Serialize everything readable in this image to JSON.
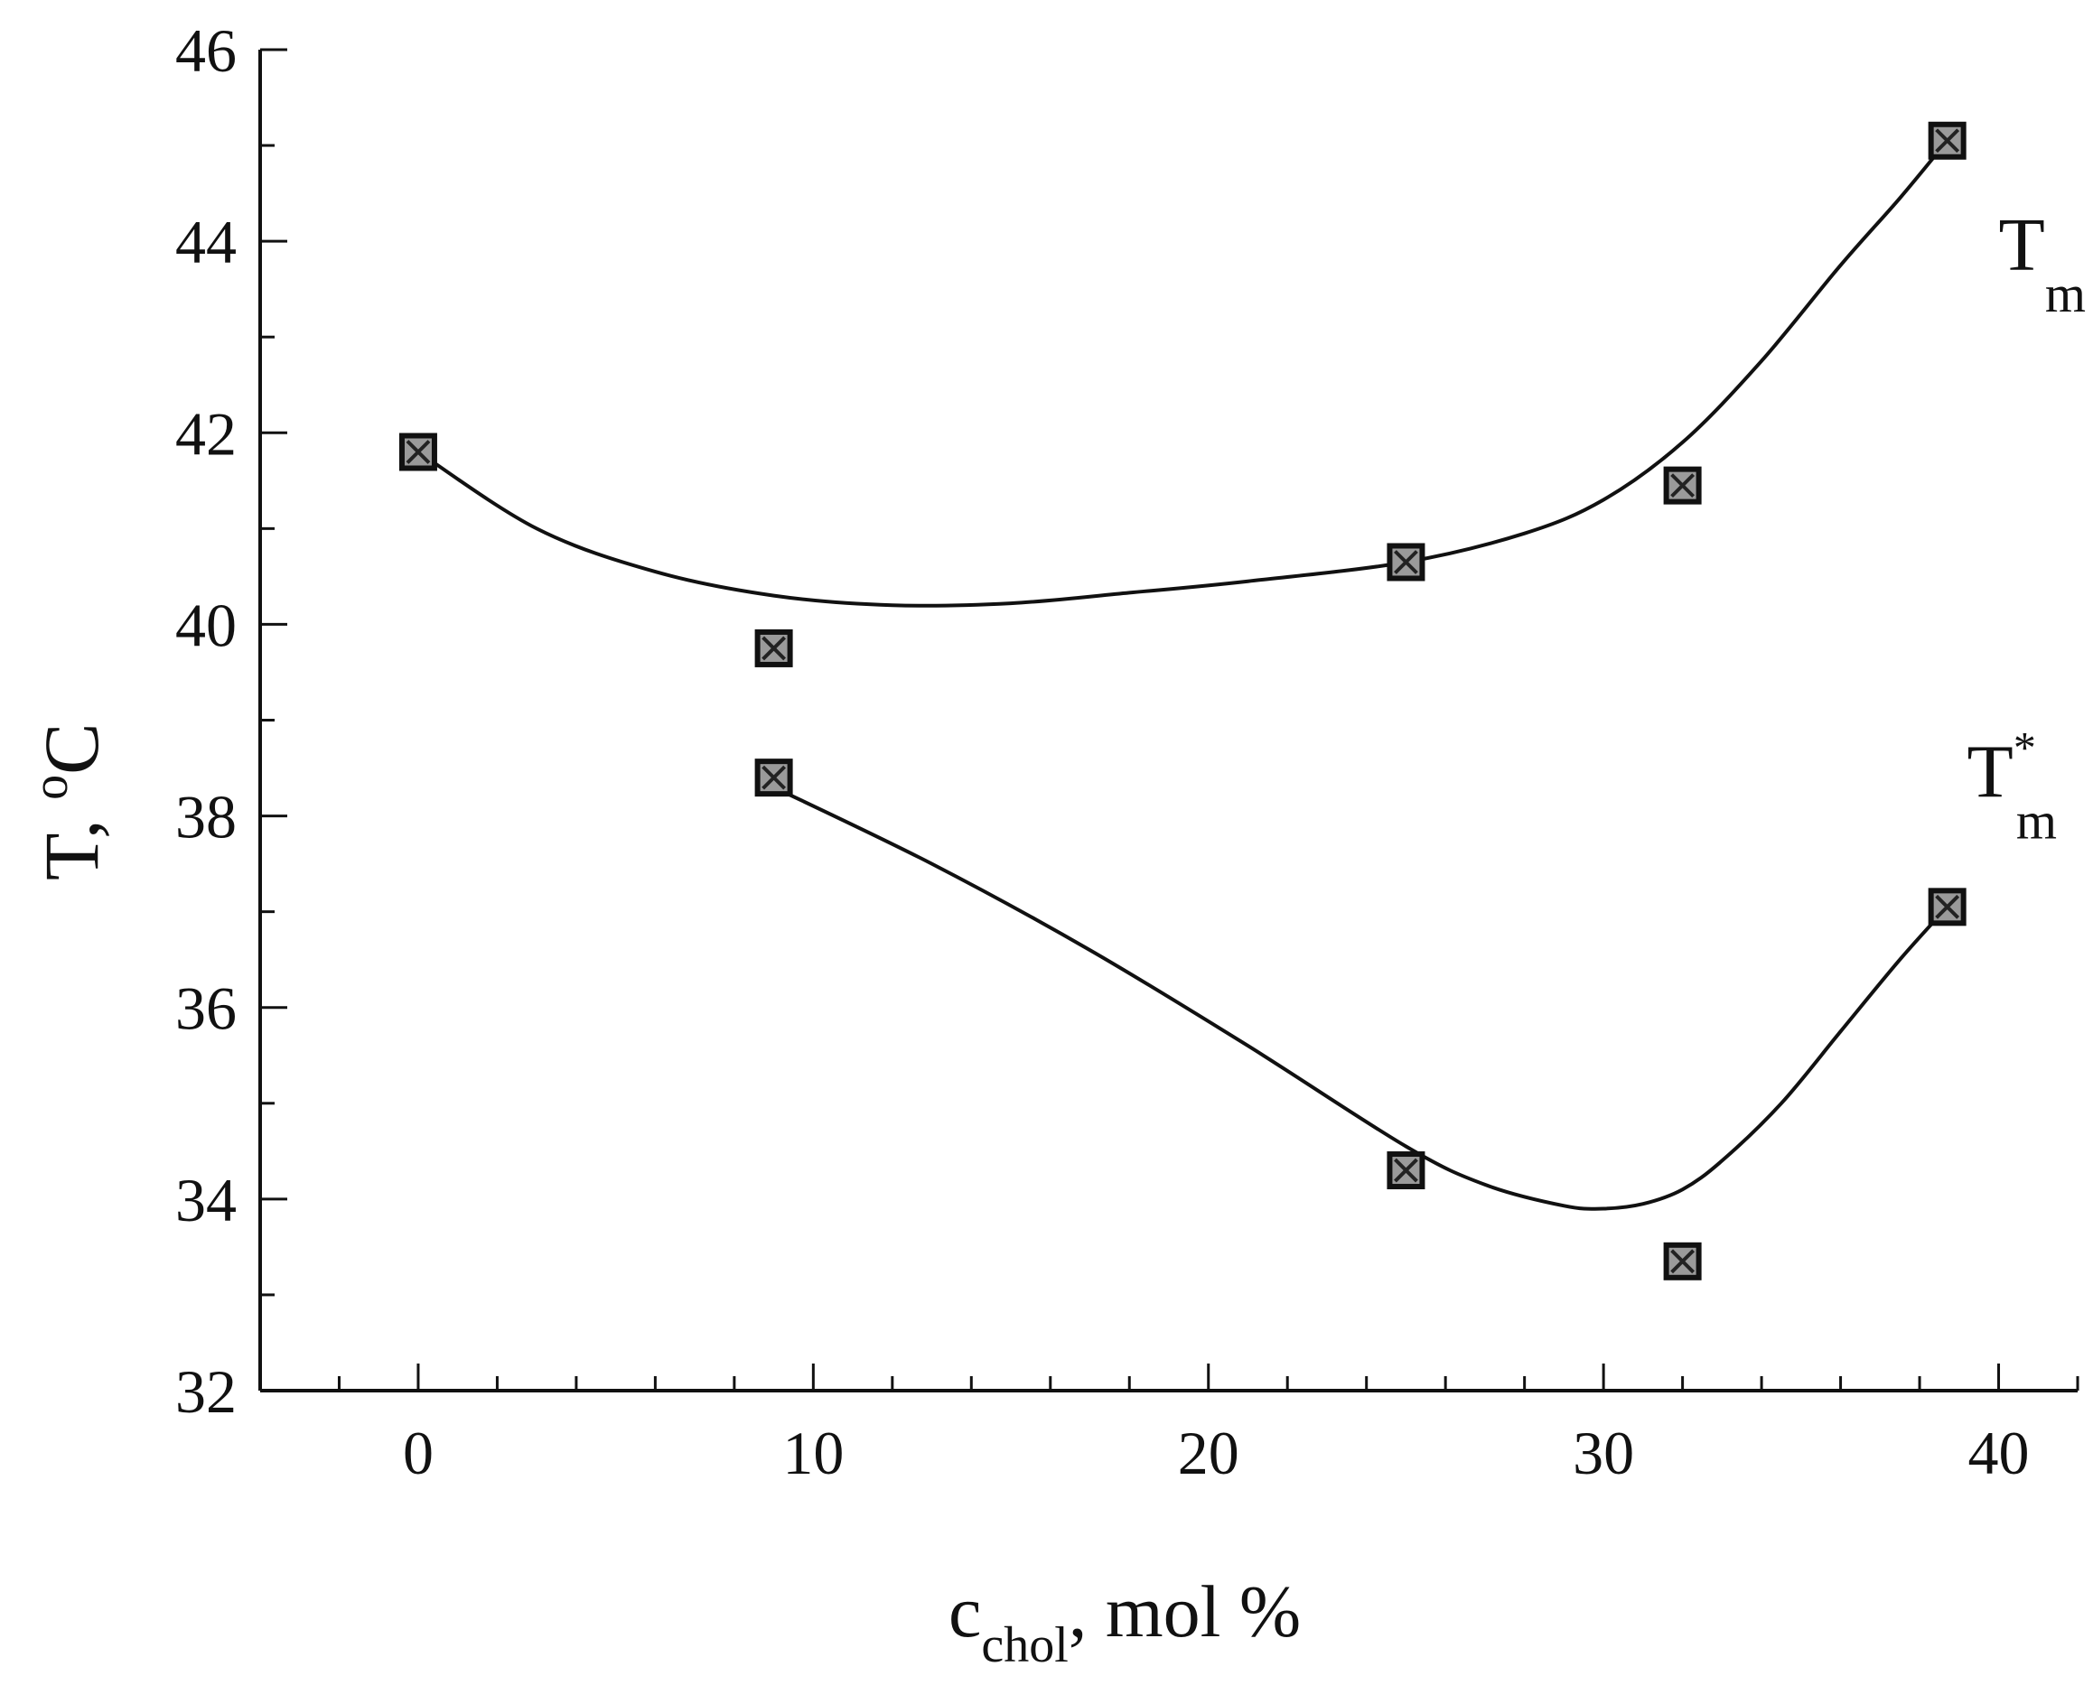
{
  "chart_data": {
    "type": "scatter",
    "title": "",
    "xlabel": {
      "main": "c",
      "sub": "chol",
      "rest": ", mol %"
    },
    "ylabel": {
      "main": "T, ",
      "sup": "o",
      "rest": "C"
    },
    "xlim": [
      -4,
      42
    ],
    "ylim": [
      32,
      46
    ],
    "x_ticks": [
      0,
      10,
      20,
      30,
      40
    ],
    "y_ticks": [
      32,
      34,
      36,
      38,
      40,
      42,
      44,
      46
    ],
    "grid": false,
    "legend": "none",
    "series": [
      {
        "label": {
          "main": "T",
          "sub": "m",
          "sup": ""
        },
        "label_position": {
          "x": 40,
          "y": 43.7
        },
        "points": [
          {
            "x": 0,
            "y": 41.8
          },
          {
            "x": 9,
            "y": 39.75
          },
          {
            "x": 25,
            "y": 40.65
          },
          {
            "x": 32,
            "y": 41.45
          },
          {
            "x": 38.7,
            "y": 45.05
          }
        ],
        "fit_curve": [
          {
            "x": 0,
            "y": 41.8
          },
          {
            "x": 3,
            "y": 41.0
          },
          {
            "x": 6,
            "y": 40.55
          },
          {
            "x": 9,
            "y": 40.3
          },
          {
            "x": 12,
            "y": 40.2
          },
          {
            "x": 15,
            "y": 40.22
          },
          {
            "x": 18,
            "y": 40.33
          },
          {
            "x": 21,
            "y": 40.45
          },
          {
            "x": 25,
            "y": 40.65
          },
          {
            "x": 28,
            "y": 40.95
          },
          {
            "x": 30,
            "y": 41.3
          },
          {
            "x": 32,
            "y": 41.9
          },
          {
            "x": 34,
            "y": 42.75
          },
          {
            "x": 36,
            "y": 43.75
          },
          {
            "x": 37.5,
            "y": 44.45
          },
          {
            "x": 38.7,
            "y": 45.05
          }
        ]
      },
      {
        "label": {
          "main": "T",
          "sub": "m",
          "sup": "*"
        },
        "label_position": {
          "x": 39.2,
          "y": 38.2
        },
        "points": [
          {
            "x": 9,
            "y": 38.4
          },
          {
            "x": 25,
            "y": 34.3
          },
          {
            "x": 32,
            "y": 33.35
          },
          {
            "x": 38.7,
            "y": 37.05
          }
        ],
        "fit_curve": [
          {
            "x": 9,
            "y": 38.3
          },
          {
            "x": 13,
            "y": 37.5
          },
          {
            "x": 17,
            "y": 36.6
          },
          {
            "x": 21,
            "y": 35.6
          },
          {
            "x": 25,
            "y": 34.55
          },
          {
            "x": 27,
            "y": 34.15
          },
          {
            "x": 29,
            "y": 33.93
          },
          {
            "x": 30,
            "y": 33.9
          },
          {
            "x": 31,
            "y": 33.95
          },
          {
            "x": 32,
            "y": 34.1
          },
          {
            "x": 33,
            "y": 34.4
          },
          {
            "x": 34.5,
            "y": 35.0
          },
          {
            "x": 36,
            "y": 35.75
          },
          {
            "x": 37.5,
            "y": 36.5
          },
          {
            "x": 38.7,
            "y": 37.05
          }
        ]
      }
    ]
  }
}
